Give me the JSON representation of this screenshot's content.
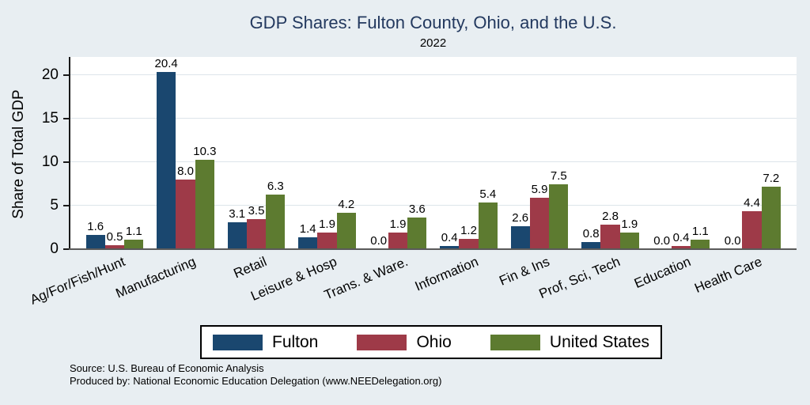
{
  "header": {
    "title": "GDP Shares: Fulton County, Ohio, and the U.S.",
    "subtitle": "2022"
  },
  "y_axis": {
    "label": "Share of Total GDP"
  },
  "footer": {
    "source_line1": "Source: U.S. Bureau of Economic Analysis",
    "source_line2": "Produced by: National Economic Education Delegation (www.NEEDelegation.org)"
  },
  "colors": {
    "figure_background": "#e8eef2",
    "plot_background": "#ffffff",
    "title_text": "#23395f",
    "gridline": "#dde5ea",
    "fulton_blue": "#1a476f",
    "ohio_red": "#9e3a48",
    "us_green": "#5d7b30"
  },
  "chart_data": {
    "type": "bar",
    "title": "GDP Shares: Fulton County, Ohio, and the U.S.",
    "subtitle": "2022",
    "xlabel": "",
    "ylabel": "Share of Total GDP",
    "ylim": [
      0,
      22.1
    ],
    "yticks": [
      0,
      5,
      10,
      15,
      20
    ],
    "grid": true,
    "legend_position": "bottom",
    "value_labels_shown": true,
    "value_label_decimals": 1,
    "categories": [
      "Ag/For/Fish/Hunt",
      "Manufacturing",
      "Retail",
      "Leisure & Hosp",
      "Trans. & Ware.",
      "Information",
      "Fin & Ins",
      "Prof, Sci, Tech",
      "Education",
      "Health Care"
    ],
    "series": [
      {
        "name": "Fulton",
        "color": "#1a476f",
        "values": [
          1.6,
          20.4,
          3.1,
          1.4,
          0.0,
          0.4,
          2.6,
          0.8,
          0.0,
          0.0
        ]
      },
      {
        "name": "Ohio",
        "color": "#9e3a48",
        "values": [
          0.5,
          8.0,
          3.5,
          1.9,
          1.9,
          1.2,
          5.9,
          2.8,
          0.4,
          4.4
        ]
      },
      {
        "name": "United States",
        "color": "#5d7b30",
        "values": [
          1.1,
          10.3,
          6.3,
          4.2,
          3.6,
          5.4,
          7.5,
          1.9,
          1.1,
          7.2
        ]
      }
    ]
  }
}
